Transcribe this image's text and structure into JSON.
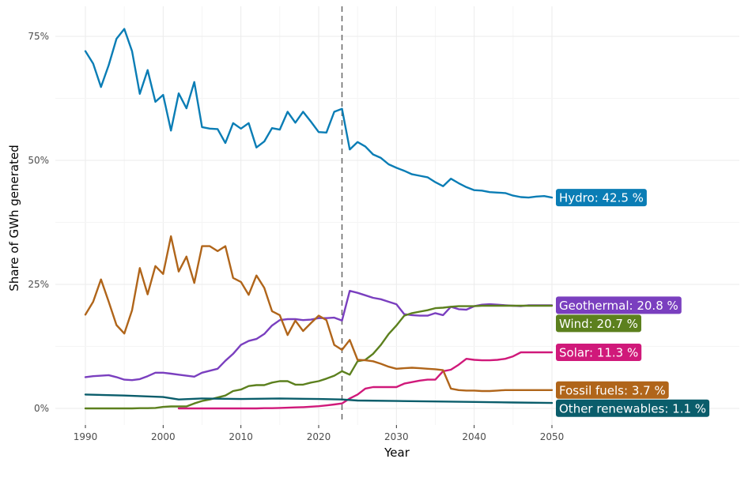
{
  "chart_data": {
    "type": "line",
    "xlabel": "Year",
    "ylabel": "Share of GWh generated",
    "xlim": [
      1990,
      2050
    ],
    "ylim": [
      0,
      75
    ],
    "x_ticks": [
      1990,
      2000,
      2010,
      2020,
      2030,
      2040,
      2050
    ],
    "x_tick_labels": [
      "1990",
      "2000",
      "2010",
      "2020",
      "2030",
      "2040",
      "2050"
    ],
    "y_ticks": [
      0,
      25,
      50,
      75
    ],
    "y_tick_labels": [
      "0%",
      "25%",
      "50%",
      "75%"
    ],
    "grid": true,
    "vline": {
      "x": 2023,
      "style": "dashed"
    },
    "series": [
      {
        "name": "Hydro",
        "label": "Hydro: 42.5 %",
        "color": "#0a7db5",
        "x": [
          1990,
          1991,
          1992,
          1993,
          1994,
          1995,
          1996,
          1997,
          1998,
          1999,
          2000,
          2001,
          2002,
          2003,
          2004,
          2005,
          2006,
          2007,
          2008,
          2009,
          2010,
          2011,
          2012,
          2013,
          2014,
          2015,
          2016,
          2017,
          2018,
          2019,
          2020,
          2021,
          2022,
          2023,
          2024,
          2025,
          2026,
          2027,
          2028,
          2029,
          2030,
          2031,
          2032,
          2033,
          2034,
          2035,
          2036,
          2037,
          2038,
          2039,
          2040,
          2041,
          2042,
          2043,
          2044,
          2045,
          2046,
          2047,
          2048,
          2049,
          2050
        ],
        "y": [
          72.0,
          69.5,
          64.8,
          69.2,
          74.5,
          76.5,
          72.0,
          63.4,
          68.2,
          61.8,
          63.2,
          56.0,
          63.5,
          60.5,
          65.8,
          56.7,
          56.4,
          56.3,
          53.5,
          57.5,
          56.4,
          57.5,
          52.6,
          53.8,
          56.5,
          56.2,
          59.8,
          57.6,
          59.8,
          57.8,
          55.7,
          55.6,
          59.8,
          60.4,
          52.2,
          53.7,
          52.8,
          51.2,
          50.5,
          49.2,
          48.5,
          47.9,
          47.2,
          46.9,
          46.6,
          45.6,
          44.8,
          46.3,
          45.4,
          44.6,
          44.0,
          43.9,
          43.6,
          43.5,
          43.4,
          42.9,
          42.6,
          42.5,
          42.7,
          42.8,
          42.5
        ]
      },
      {
        "name": "Geothermal",
        "label": "Geothermal: 20.8 %",
        "color": "#7a3fbf",
        "x": [
          1990,
          1991,
          1992,
          1993,
          1994,
          1995,
          1996,
          1997,
          1998,
          1999,
          2000,
          2001,
          2002,
          2003,
          2004,
          2005,
          2006,
          2007,
          2008,
          2009,
          2010,
          2011,
          2012,
          2013,
          2014,
          2015,
          2016,
          2017,
          2018,
          2019,
          2020,
          2021,
          2022,
          2023,
          2024,
          2025,
          2026,
          2027,
          2028,
          2029,
          2030,
          2031,
          2032,
          2033,
          2034,
          2035,
          2036,
          2037,
          2038,
          2039,
          2040,
          2041,
          2042,
          2043,
          2044,
          2045,
          2046,
          2047,
          2048,
          2049,
          2050
        ],
        "y": [
          6.3,
          6.5,
          6.6,
          6.7,
          6.3,
          5.8,
          5.7,
          5.9,
          6.5,
          7.2,
          7.2,
          7.0,
          6.8,
          6.6,
          6.4,
          7.2,
          7.6,
          8.0,
          9.6,
          11.0,
          12.8,
          13.6,
          14.0,
          15.0,
          16.7,
          17.8,
          18.0,
          18.0,
          17.8,
          17.9,
          18.2,
          18.2,
          18.3,
          17.7,
          23.7,
          23.3,
          22.8,
          22.3,
          22.0,
          21.5,
          21.0,
          19.0,
          18.8,
          18.7,
          18.7,
          19.2,
          18.8,
          20.5,
          20.0,
          19.9,
          20.6,
          20.9,
          21.0,
          20.9,
          20.8,
          20.7,
          20.6,
          20.8,
          20.8,
          20.8,
          20.8
        ]
      },
      {
        "name": "Wind",
        "label": "Wind: 20.7 %",
        "color": "#5c801e",
        "x": [
          1990,
          1991,
          1992,
          1993,
          1994,
          1995,
          1996,
          1997,
          1998,
          1999,
          2000,
          2001,
          2002,
          2003,
          2004,
          2005,
          2006,
          2007,
          2008,
          2009,
          2010,
          2011,
          2012,
          2013,
          2014,
          2015,
          2016,
          2017,
          2018,
          2019,
          2020,
          2021,
          2022,
          2023,
          2024,
          2025,
          2026,
          2027,
          2028,
          2029,
          2030,
          2031,
          2032,
          2033,
          2034,
          2035,
          2036,
          2037,
          2038,
          2039,
          2040,
          2041,
          2042,
          2043,
          2044,
          2045,
          2046,
          2047,
          2048,
          2049,
          2050
        ],
        "y": [
          0,
          0,
          0,
          0,
          0,
          0,
          0,
          0.05,
          0.05,
          0.1,
          0.3,
          0.4,
          0.4,
          0.4,
          1.0,
          1.5,
          1.8,
          2.2,
          2.6,
          3.5,
          3.8,
          4.5,
          4.7,
          4.7,
          5.2,
          5.5,
          5.5,
          4.8,
          4.8,
          5.2,
          5.5,
          6.0,
          6.6,
          7.5,
          6.8,
          9.5,
          9.8,
          11.0,
          12.8,
          15.0,
          16.7,
          18.7,
          19.2,
          19.5,
          19.8,
          20.2,
          20.3,
          20.5,
          20.6,
          20.6,
          20.6,
          20.7,
          20.7,
          20.7,
          20.7,
          20.7,
          20.7,
          20.7,
          20.7,
          20.7,
          20.7
        ]
      },
      {
        "name": "Solar",
        "label": "Solar: 11.3 %",
        "color": "#d0197a",
        "x": [
          2002,
          2003,
          2004,
          2005,
          2006,
          2007,
          2008,
          2009,
          2010,
          2011,
          2012,
          2013,
          2014,
          2015,
          2016,
          2017,
          2018,
          2019,
          2020,
          2021,
          2022,
          2023,
          2024,
          2025,
          2026,
          2027,
          2028,
          2029,
          2030,
          2031,
          2032,
          2033,
          2034,
          2035,
          2036,
          2037,
          2038,
          2039,
          2040,
          2041,
          2042,
          2043,
          2044,
          2045,
          2046,
          2047,
          2048,
          2049,
          2050
        ],
        "y": [
          0,
          0,
          0,
          0,
          0,
          0,
          0,
          0,
          0,
          0,
          0,
          0.05,
          0.05,
          0.1,
          0.15,
          0.2,
          0.25,
          0.35,
          0.45,
          0.6,
          0.8,
          1.0,
          2.0,
          2.8,
          4.0,
          4.3,
          4.3,
          4.3,
          4.3,
          5.0,
          5.3,
          5.6,
          5.8,
          5.8,
          7.5,
          7.8,
          8.8,
          10.0,
          9.8,
          9.7,
          9.7,
          9.8,
          10.0,
          10.5,
          11.3,
          11.3,
          11.3,
          11.3,
          11.3
        ]
      },
      {
        "name": "Fossil fuels",
        "label": "Fossil fuels: 3.7 %",
        "color": "#b0651a",
        "x": [
          1990,
          1991,
          1992,
          1993,
          1994,
          1995,
          1996,
          1997,
          1998,
          1999,
          2000,
          2001,
          2002,
          2003,
          2004,
          2005,
          2006,
          2007,
          2008,
          2009,
          2010,
          2011,
          2012,
          2013,
          2014,
          2015,
          2016,
          2017,
          2018,
          2019,
          2020,
          2021,
          2022,
          2023,
          2024,
          2025,
          2026,
          2027,
          2028,
          2029,
          2030,
          2031,
          2032,
          2033,
          2034,
          2035,
          2036,
          2037,
          2038,
          2039,
          2040,
          2041,
          2042,
          2043,
          2044,
          2045,
          2046,
          2047,
          2048,
          2049,
          2050
        ],
        "y": [
          18.9,
          21.5,
          26.0,
          21.5,
          16.8,
          15.1,
          19.8,
          28.3,
          23.0,
          28.7,
          27.1,
          34.7,
          27.6,
          30.6,
          25.3,
          32.7,
          32.7,
          31.7,
          32.7,
          26.3,
          25.5,
          22.9,
          26.8,
          24.3,
          19.6,
          18.8,
          14.8,
          17.7,
          15.6,
          17.2,
          18.7,
          17.8,
          12.8,
          11.8,
          13.8,
          9.8,
          9.7,
          9.5,
          9.0,
          8.4,
          8.0,
          8.1,
          8.2,
          8.1,
          8.0,
          7.9,
          7.7,
          4.0,
          3.7,
          3.6,
          3.6,
          3.5,
          3.5,
          3.6,
          3.7,
          3.7,
          3.7,
          3.7,
          3.7,
          3.7,
          3.7
        ]
      },
      {
        "name": "Other renewables",
        "label": "Other renewables: 1.1 %",
        "color": "#0a5d6b",
        "x": [
          1990,
          1995,
          2000,
          2002,
          2005,
          2010,
          2015,
          2020,
          2023,
          2025,
          2030,
          2035,
          2040,
          2045,
          2050
        ],
        "y": [
          2.8,
          2.6,
          2.3,
          1.8,
          2.0,
          1.9,
          2.0,
          1.9,
          1.8,
          1.6,
          1.5,
          1.4,
          1.3,
          1.2,
          1.1
        ]
      }
    ]
  }
}
